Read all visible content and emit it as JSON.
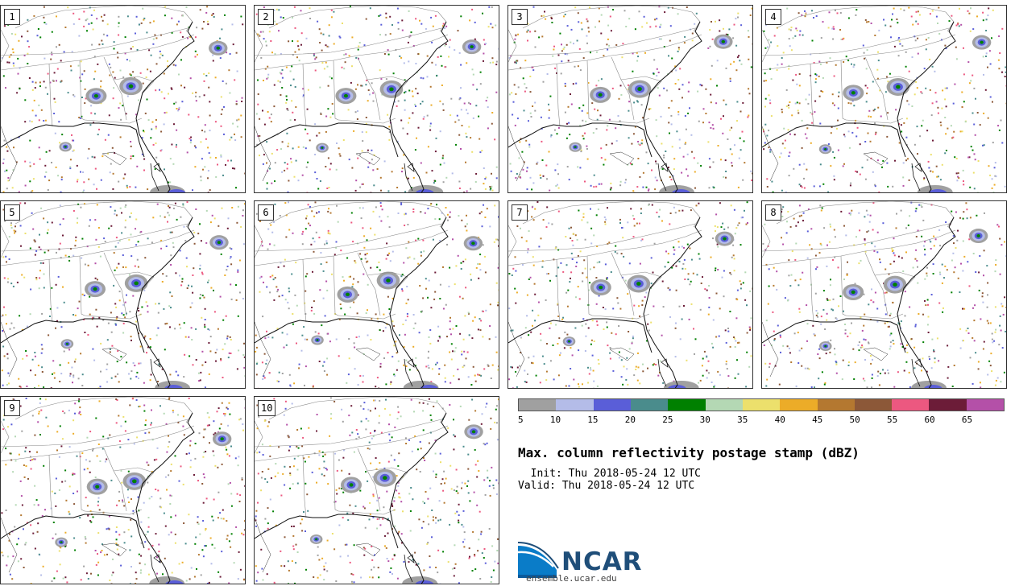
{
  "panels": [
    {
      "id": "1"
    },
    {
      "id": "2"
    },
    {
      "id": "3"
    },
    {
      "id": "4"
    },
    {
      "id": "5"
    },
    {
      "id": "6"
    },
    {
      "id": "7"
    },
    {
      "id": "8"
    },
    {
      "id": "9"
    },
    {
      "id": "10"
    }
  ],
  "colorbar": {
    "colors": [
      "#a0a0a0",
      "#b4bce8",
      "#5a5ed8",
      "#4a8c8c",
      "#008000",
      "#b4d8b4",
      "#ece06c",
      "#ecac28",
      "#b47830",
      "#8c5838",
      "#ec5880",
      "#6c1c38",
      "#b450a8"
    ],
    "ticks": [
      "5",
      "10",
      "15",
      "20",
      "25",
      "30",
      "35",
      "40",
      "45",
      "50",
      "55",
      "60",
      "65"
    ]
  },
  "title": "Max. column reflectivity postage stamp (dBZ)",
  "init": "  Init: Thu 2018-05-24 12 UTC",
  "valid": "Valid: Thu 2018-05-24 12 UTC",
  "logo": {
    "text": "NCAR",
    "url": "ensemble.ucar.edu"
  }
}
